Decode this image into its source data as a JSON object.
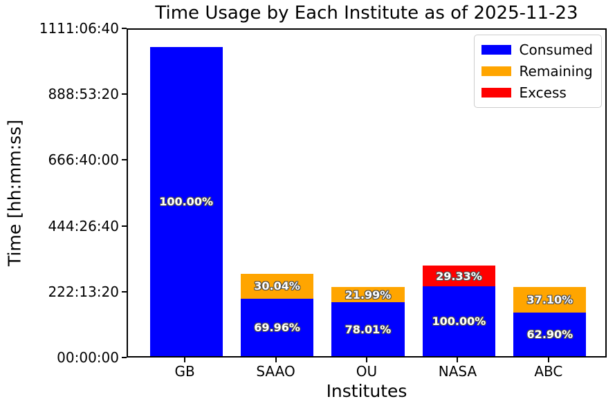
{
  "chart_data": {
    "type": "bar",
    "stacked": true,
    "title": "Time Usage by Each Institute as of 2025-11-23",
    "xlabel": "Institutes",
    "ylabel": "Time [hh:mm:ss]",
    "categories": [
      "GB",
      "SAAO",
      "OU",
      "NASA",
      "ABC"
    ],
    "y_axis": {
      "unit": "seconds",
      "min": 0,
      "max": 4000000,
      "tick_values": [
        0,
        800000,
        1600000,
        2400000,
        3200000,
        4000000
      ],
      "tick_labels": [
        "00:00:00",
        "222:13:20",
        "444:26:40",
        "666:40:00",
        "888:53:20",
        "1111:06:40"
      ],
      "grid": false
    },
    "legend": {
      "position": "upper right",
      "entries": [
        {
          "label": "Consumed",
          "color": "#0000ff"
        },
        {
          "label": "Remaining",
          "color": "#ffa500"
        },
        {
          "label": "Excess",
          "color": "#ff0000"
        }
      ]
    },
    "bars": [
      {
        "institute": "GB",
        "segments": [
          {
            "series": "Consumed",
            "seconds": 3760000,
            "label": "100.00%"
          }
        ]
      },
      {
        "institute": "SAAO",
        "segments": [
          {
            "series": "Consumed",
            "seconds": 699600,
            "label": "69.96%"
          },
          {
            "series": "Remaining",
            "seconds": 300400,
            "label": "30.04%"
          }
        ]
      },
      {
        "institute": "OU",
        "segments": [
          {
            "series": "Consumed",
            "seconds": 655300,
            "label": "78.01%"
          },
          {
            "series": "Remaining",
            "seconds": 184700,
            "label": "21.99%"
          }
        ]
      },
      {
        "institute": "NASA",
        "segments": [
          {
            "series": "Consumed",
            "seconds": 850000,
            "label": "100.00%"
          },
          {
            "series": "Excess",
            "seconds": 249300,
            "label": "29.33%"
          }
        ]
      },
      {
        "institute": "ABC",
        "segments": [
          {
            "series": "Consumed",
            "seconds": 528400,
            "label": "62.90%"
          },
          {
            "series": "Remaining",
            "seconds": 311600,
            "label": "37.10%"
          }
        ]
      }
    ]
  },
  "colors": {
    "consumed": "#0000ff",
    "remaining": "#ffa500",
    "excess": "#ff0000",
    "bar_label_text": "#ffffff",
    "bar_label_outline": "#4d4d4d",
    "spine": "#000000",
    "background": "#ffffff"
  }
}
